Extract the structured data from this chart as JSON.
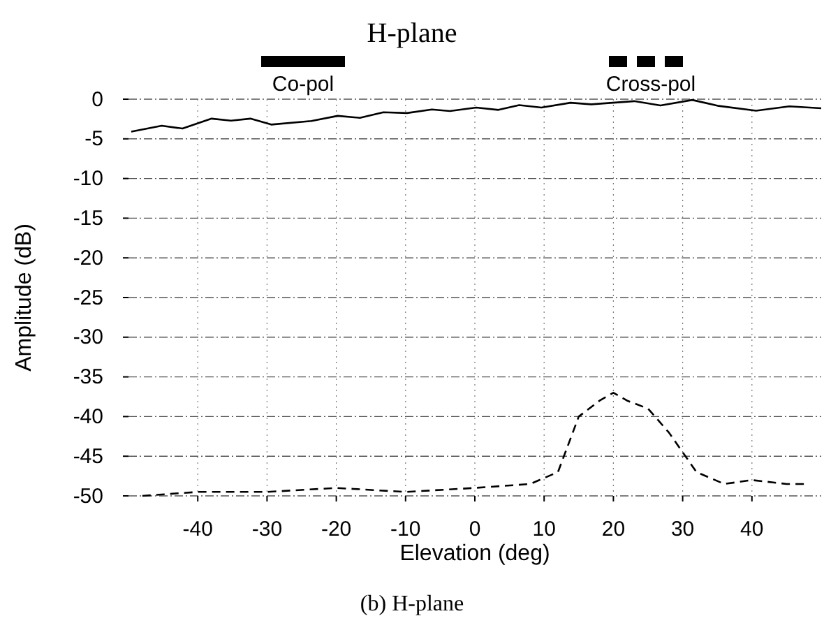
{
  "chart_data": {
    "type": "line",
    "title": "H-plane",
    "xlabel": "Elevation (deg)",
    "ylabel": "Amplitude (dB)",
    "annotations": [
      "(b) H-plane"
    ],
    "xlim": [
      -50,
      50
    ],
    "xticks": [
      -40,
      -30,
      -20,
      -10,
      0,
      10,
      20,
      30,
      40
    ],
    "ylim": [
      -50,
      0
    ],
    "yticks": [
      0,
      -5,
      -10,
      -15,
      -20,
      -25,
      -30,
      -35,
      -40,
      -45,
      -50
    ],
    "grid": true,
    "legend": "top",
    "series": [
      {
        "name": "Co-pol",
        "color": "#000000",
        "line_style": "solid",
        "x": [
          -49.6,
          -45.2,
          -42.2,
          -38,
          -35.2,
          -32.4,
          -29.4,
          -23.6,
          -19.8,
          -16.6,
          -13.2,
          -9.8,
          -6.2,
          -3.6,
          0.2,
          3.4,
          6.4,
          9.6,
          13.8,
          16.8,
          23,
          26.8,
          31.4,
          35.2,
          40.6,
          45.4,
          50
        ],
        "values": [
          -4.1,
          -3.35,
          -3.7,
          -2.45,
          -2.7,
          -2.45,
          -3.2,
          -2.75,
          -2.1,
          -2.35,
          -1.65,
          -1.75,
          -1.3,
          -1.5,
          -1.05,
          -1.35,
          -0.75,
          -1.05,
          -0.45,
          -0.65,
          -0.25,
          -0.8,
          -0.1,
          -0.85,
          -1.45,
          -0.9,
          -1.15
        ]
      },
      {
        "name": "Cross-pol",
        "color": "#000000",
        "line_style": "dashed",
        "x": [
          -48,
          -40,
          -30,
          -20,
          -10,
          0,
          8,
          12,
          15,
          18,
          20,
          22,
          25,
          28,
          32,
          36,
          40,
          45,
          48
        ],
        "values": [
          -50,
          -49.5,
          -49.5,
          -49,
          -49.5,
          -49,
          -48.5,
          -47,
          -40,
          -38,
          -37,
          -38,
          -39,
          -42,
          -47,
          -48.5,
          -48,
          -48.5,
          -48.5
        ]
      }
    ]
  }
}
